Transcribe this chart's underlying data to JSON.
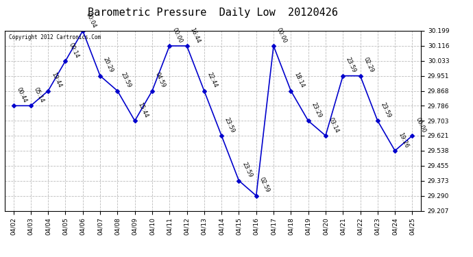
{
  "title": "Barometric Pressure  Daily Low  20120426",
  "copyright": "Copyright 2012 Cartronics.Com",
  "x_labels": [
    "04/02",
    "04/03",
    "04/04",
    "04/05",
    "04/06",
    "04/07",
    "04/08",
    "04/09",
    "04/10",
    "04/11",
    "04/12",
    "04/13",
    "04/14",
    "04/15",
    "04/16",
    "04/17",
    "04/18",
    "04/19",
    "04/20",
    "04/21",
    "04/22",
    "04/23",
    "04/24",
    "04/25"
  ],
  "y_values": [
    29.786,
    29.786,
    29.868,
    30.033,
    30.199,
    29.951,
    29.868,
    29.703,
    29.868,
    30.116,
    30.116,
    29.868,
    29.621,
    29.373,
    29.29,
    30.116,
    29.868,
    29.703,
    29.621,
    29.951,
    29.951,
    29.703,
    29.538,
    29.621
  ],
  "point_labels": [
    "00:44",
    "05:14",
    "19:44",
    "00:14",
    "00:04",
    "20:29",
    "23:59",
    "15:44",
    "04:59",
    "00:00",
    "16:44",
    "22:44",
    "23:59",
    "23:59",
    "02:59",
    "00:00",
    "18:14",
    "23:29",
    "03:14",
    "23:59",
    "02:29",
    "23:59",
    "19:26",
    "00:00"
  ],
  "y_min": 29.207,
  "y_max": 30.199,
  "y_ticks": [
    29.207,
    29.29,
    29.373,
    29.455,
    29.538,
    29.621,
    29.703,
    29.786,
    29.868,
    29.951,
    30.033,
    30.116,
    30.199
  ],
  "line_color": "#0000cc",
  "marker_color": "#0000cc",
  "bg_color": "#ffffff",
  "grid_color": "#bbbbbb",
  "title_fontsize": 11,
  "tick_fontsize": 6.5,
  "annotation_fontsize": 6.0
}
